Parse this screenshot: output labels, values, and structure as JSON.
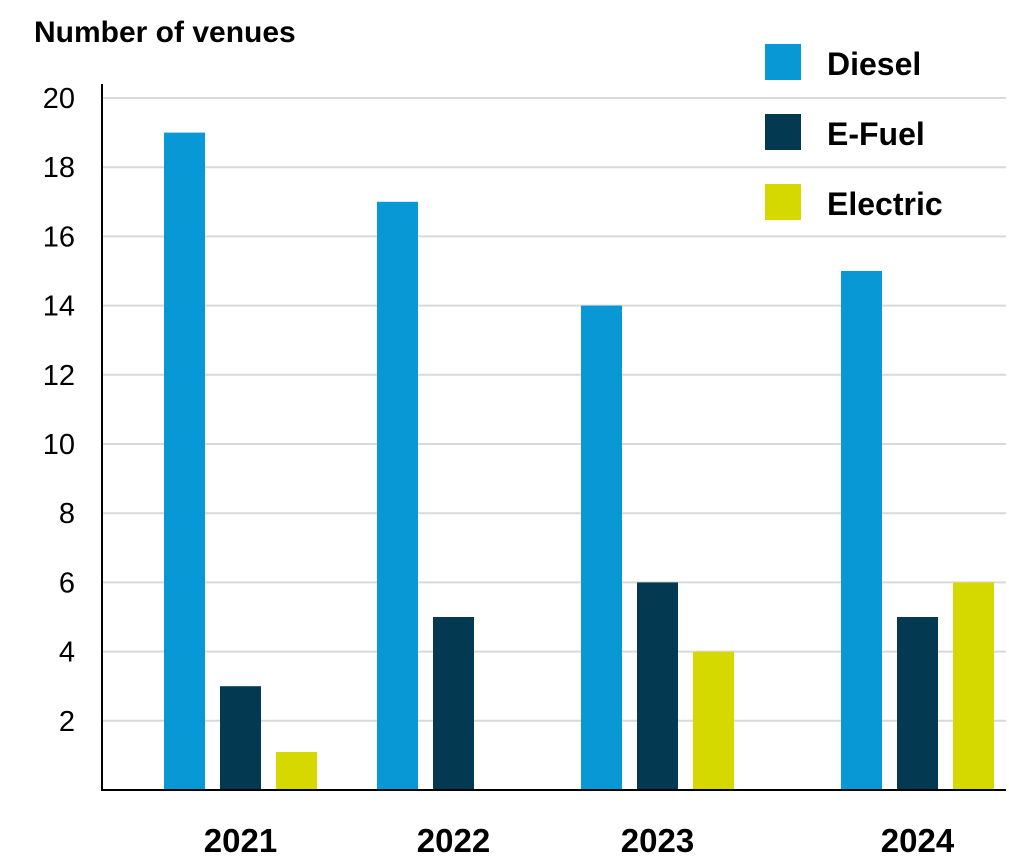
{
  "chart_data": {
    "type": "bar",
    "title": "",
    "xlabel": "",
    "ylabel": "Number of venues",
    "categories": [
      "2021",
      "2022",
      "2023",
      "2024"
    ],
    "ylim": [
      0,
      20
    ],
    "yticks": [
      2,
      4,
      6,
      8,
      10,
      12,
      14,
      16,
      18,
      20
    ],
    "grid": true,
    "legend_position": "top-right",
    "series": [
      {
        "name": "Diesel",
        "color": "#0898d6",
        "values": [
          19,
          17,
          14,
          15
        ]
      },
      {
        "name": "E-Fuel",
        "color": "#033a52",
        "values": [
          3,
          5,
          6,
          5
        ]
      },
      {
        "name": "Electric",
        "color": "#d5d900",
        "values": [
          1.1,
          0,
          4,
          6
        ]
      }
    ]
  }
}
